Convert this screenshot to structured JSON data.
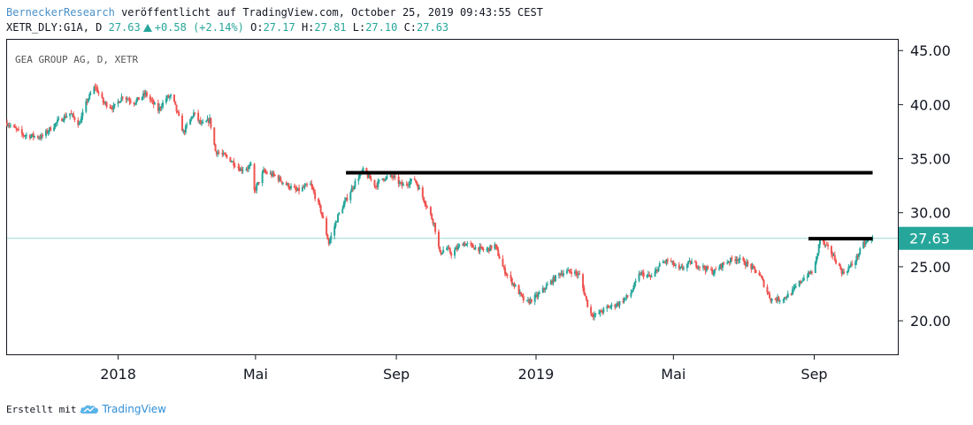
{
  "header": {
    "author": "BerneckerResearch",
    "published": "veröffentlicht auf TradingView.com, October 25, 2019 09:43:55 CEST",
    "symbol": "XETR_DLY:G1A, D",
    "last": "27.63",
    "change": "+0.58 (+2.14%)",
    "ohlc": {
      "o_label": "O:",
      "o": "27.17",
      "h_label": "H:",
      "h": "27.81",
      "l_label": "L:",
      "l": "27.10",
      "c_label": "C:",
      "c": "27.63"
    }
  },
  "footer": {
    "created_with": "Erstellt mit",
    "brand": "TradingView"
  },
  "colors": {
    "up": "#26a69a",
    "down": "#ef5350",
    "price_line": "#26a69a",
    "axis": "#131722"
  },
  "chart_data": {
    "type": "candlestick",
    "watermark": "GEA GROUP AG, D, XETR",
    "x_tick_labels": [
      "2018",
      "Mai",
      "Sep",
      "2019",
      "Mai",
      "Sep"
    ],
    "x_tick_dates": [
      "2018-01-01",
      "2018-05-01",
      "2018-09-01",
      "2019-01-01",
      "2019-05-01",
      "2019-09-01"
    ],
    "x_range": [
      "2017-09-26",
      "2019-11-13"
    ],
    "y_ticks": [
      "45.00",
      "40.00",
      "35.00",
      "30.00",
      "25.00",
      "20.00"
    ],
    "ylim": [
      16.9,
      46.0
    ],
    "last_price_label": "27.63",
    "last_price": 27.63,
    "grid": false,
    "resistance_lines": [
      {
        "from": "2018-07-19",
        "to": "2019-10-22",
        "value": 33.7
      },
      {
        "from": "2019-08-27",
        "to": "2019-10-22",
        "value": 27.6
      }
    ],
    "price_path": [
      [
        "2017-09-26",
        38.3
      ],
      [
        "2017-10-10",
        37.2
      ],
      [
        "2017-10-26",
        37.0
      ],
      [
        "2017-11-10",
        38.5
      ],
      [
        "2017-11-20",
        39.2
      ],
      [
        "2017-11-28",
        38.2
      ],
      [
        "2017-12-05",
        40.4
      ],
      [
        "2017-12-12",
        41.7
      ],
      [
        "2017-12-19",
        40.2
      ],
      [
        "2017-12-28",
        39.7
      ],
      [
        "2018-01-05",
        40.8
      ],
      [
        "2018-01-15",
        40.2
      ],
      [
        "2018-01-25",
        41.0
      ],
      [
        "2018-02-05",
        39.5
      ],
      [
        "2018-02-12",
        40.6
      ],
      [
        "2018-02-17",
        40.8
      ],
      [
        "2018-02-27",
        37.4
      ],
      [
        "2018-03-08",
        39.2
      ],
      [
        "2018-03-15",
        38.1
      ],
      [
        "2018-03-22",
        38.6
      ],
      [
        "2018-03-27",
        35.7
      ],
      [
        "2018-04-08",
        35.0
      ],
      [
        "2018-04-18",
        34.0
      ],
      [
        "2018-04-28",
        34.3
      ],
      [
        "2018-04-30",
        32.0
      ],
      [
        "2018-05-08",
        33.8
      ],
      [
        "2018-05-18",
        33.4
      ],
      [
        "2018-05-28",
        32.6
      ],
      [
        "2018-06-06",
        32.0
      ],
      [
        "2018-06-18",
        32.6
      ],
      [
        "2018-06-27",
        30.2
      ],
      [
        "2018-07-04",
        27.2
      ],
      [
        "2018-07-12",
        29.7
      ],
      [
        "2018-07-22",
        31.8
      ],
      [
        "2018-07-29",
        33.2
      ],
      [
        "2018-08-03",
        33.9
      ],
      [
        "2018-08-14",
        32.5
      ],
      [
        "2018-08-20",
        33.2
      ],
      [
        "2018-08-29",
        33.3
      ],
      [
        "2018-09-06",
        32.5
      ],
      [
        "2018-09-17",
        33.1
      ],
      [
        "2018-09-26",
        31.0
      ],
      [
        "2018-10-04",
        29.0
      ],
      [
        "2018-10-09",
        26.2
      ],
      [
        "2018-10-14",
        26.8
      ],
      [
        "2018-10-19",
        26.2
      ],
      [
        "2018-10-29",
        27.2
      ],
      [
        "2018-11-08",
        26.8
      ],
      [
        "2018-11-18",
        26.5
      ],
      [
        "2018-11-26",
        27.0
      ],
      [
        "2018-12-04",
        24.7
      ],
      [
        "2018-12-13",
        23.3
      ],
      [
        "2018-12-23",
        21.6
      ],
      [
        "2019-01-02",
        22.3
      ],
      [
        "2019-01-12",
        23.4
      ],
      [
        "2019-01-22",
        24.4
      ],
      [
        "2019-02-01",
        24.6
      ],
      [
        "2019-02-08",
        24.2
      ],
      [
        "2019-02-17",
        20.7
      ],
      [
        "2019-02-22",
        20.5
      ],
      [
        "2019-03-04",
        21.2
      ],
      [
        "2019-03-14",
        21.6
      ],
      [
        "2019-03-24",
        22.4
      ],
      [
        "2019-04-02",
        24.4
      ],
      [
        "2019-04-12",
        24.0
      ],
      [
        "2019-04-20",
        25.3
      ],
      [
        "2019-04-27",
        25.6
      ],
      [
        "2019-05-06",
        24.7
      ],
      [
        "2019-05-16",
        25.4
      ],
      [
        "2019-05-26",
        25.0
      ],
      [
        "2019-06-05",
        24.5
      ],
      [
        "2019-06-15",
        25.4
      ],
      [
        "2019-06-25",
        25.8
      ],
      [
        "2019-07-05",
        25.2
      ],
      [
        "2019-07-15",
        24.3
      ],
      [
        "2019-07-25",
        22.0
      ],
      [
        "2019-08-04",
        22.0
      ],
      [
        "2019-08-12",
        22.6
      ],
      [
        "2019-08-22",
        23.9
      ],
      [
        "2019-09-01",
        24.7
      ],
      [
        "2019-09-06",
        27.5
      ],
      [
        "2019-09-16",
        26.3
      ],
      [
        "2019-09-26",
        24.4
      ],
      [
        "2019-10-06",
        25.4
      ],
      [
        "2019-10-14",
        27.1
      ],
      [
        "2019-10-22",
        27.6
      ]
    ]
  }
}
